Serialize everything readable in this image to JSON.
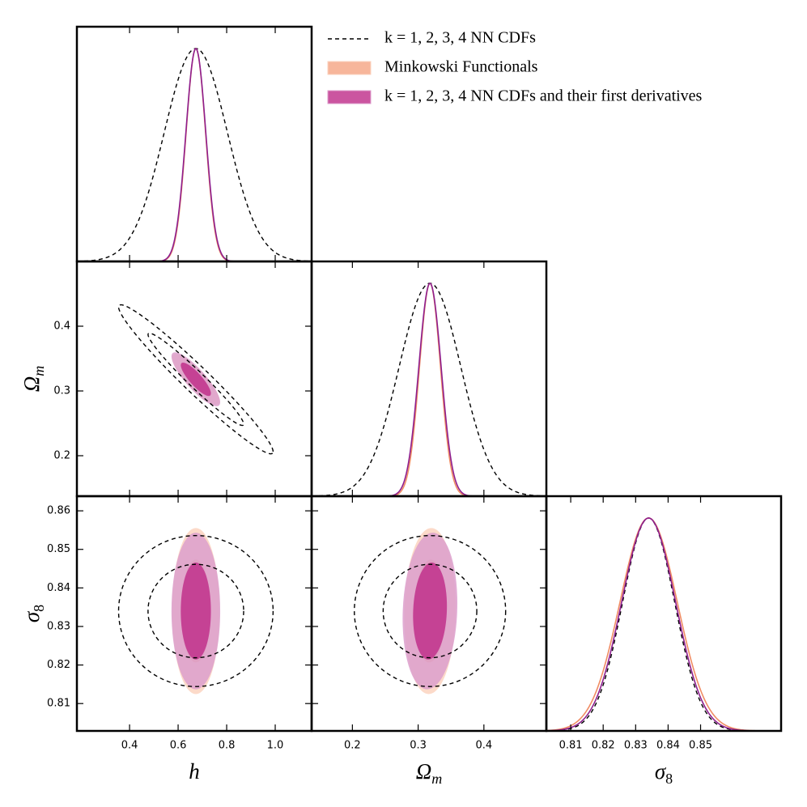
{
  "chart_data": {
    "type": "corner",
    "params": [
      {
        "symbol": "h",
        "xlim": [
          0.183,
          1.15
        ],
        "xticks": [
          0.4,
          0.6,
          0.8,
          {
            "value": 1.0,
            "label": "1.0"
          }
        ]
      },
      {
        "symbol": "Ω",
        "subscript": "m",
        "xlim": [
          0.138,
          0.495
        ],
        "xticks": [
          0.2,
          0.3,
          0.4
        ],
        "ylim": [
          0.1375,
          0.5
        ],
        "yticks": [
          0.2,
          0.3,
          0.4
        ]
      },
      {
        "symbol": "σ",
        "subscript": "8",
        "xlim": [
          0.8025,
          0.8748
        ],
        "xticks": [
          0.81,
          0.82,
          0.83,
          0.84,
          0.85
        ],
        "ylim": [
          0.8029,
          0.8638
        ],
        "yticks": [
          0.81,
          0.82,
          0.83,
          0.84,
          0.85,
          0.86
        ]
      }
    ],
    "series": [
      {
        "name": "k = 1, 2, 3, 4 NN CDFs",
        "color": "#000000",
        "style": "dashed",
        "mean": [
          0.673,
          0.318,
          0.834
        ],
        "sigma": [
          0.13,
          0.047,
          0.008
        ],
        "corr": [
          -0.97,
          0,
          0
        ]
      },
      {
        "name": "Minkowski Functionals",
        "color": "#f08c64",
        "style": "filled",
        "fill": [
          "#fbd3bf",
          "#f6a98a"
        ],
        "mean": [
          0.673,
          0.318,
          0.834
        ],
        "sigma": [
          0.04,
          0.016,
          0.0088
        ],
        "corr": [
          -0.85,
          0,
          0.05
        ]
      },
      {
        "name": "k = 1, 2, 3, 4 NN CDFs and their first derivatives",
        "color": "#8e1f8f",
        "style": "filled",
        "fill": [
          "#dc9fcc",
          "#c2378f"
        ],
        "mean": [
          0.673,
          0.318,
          0.834
        ],
        "sigma": [
          0.041,
          0.017,
          0.0083
        ],
        "corr": [
          -0.85,
          0,
          0.1
        ]
      }
    ]
  }
}
